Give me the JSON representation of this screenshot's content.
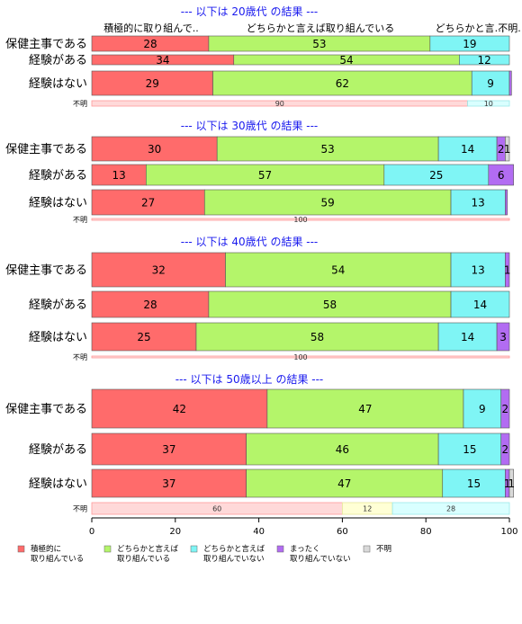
{
  "chart_data": {
    "type": "bar",
    "orientation": "horizontal-stacked-100",
    "xlim": [
      0,
      100
    ],
    "xticks": [
      0,
      20,
      40,
      60,
      80,
      100
    ],
    "column_headers": [
      "積極的に取り組んで..",
      "どちらかと言えば取り組んでいる",
      "どちらかと言…",
      "不明."
    ],
    "legend": [
      {
        "name": "積極的に\n取り組んでいる",
        "color": "#ff6b6b"
      },
      {
        "name": "どちらかと言えば\n取り組んでいる",
        "color": "#b4f56a"
      },
      {
        "name": "どちらかと言えば\n取り組んでいない",
        "color": "#7ff5f5"
      },
      {
        "name": "まったく\n取り組んでいない",
        "color": "#b26cf2"
      },
      {
        "name": "不明",
        "color": "#d9d9d9"
      }
    ],
    "groups": [
      {
        "title": "--- 以下は 20歳代 の結果 ---",
        "rows": [
          {
            "label": "保健主事である",
            "values": [
              28,
              53,
              19,
              0,
              0
            ],
            "labels": [
              "28",
              "53",
              "19",
              "",
              ""
            ]
          },
          {
            "label": "経験がある",
            "values": [
              34,
              54,
              12,
              0,
              0
            ],
            "labels": [
              "34",
              "54",
              "12",
              "",
              ""
            ]
          },
          {
            "label": "経験はない",
            "values": [
              29,
              62,
              9,
              0.5,
              0
            ],
            "labels": [
              "29",
              "62",
              "9",
              "",
              ""
            ]
          }
        ],
        "unknown": {
          "label": "不明",
          "values": [
            90,
            0,
            10
          ],
          "labels": [
            "90",
            "",
            "10"
          ]
        }
      },
      {
        "title": "--- 以下は 30歳代 の結果 ---",
        "rows": [
          {
            "label": "保健主事である",
            "values": [
              30,
              53,
              14,
              2,
              1
            ],
            "labels": [
              "30",
              "53",
              "14",
              "2",
              "1"
            ]
          },
          {
            "label": "経験がある",
            "values": [
              13,
              57,
              25,
              6,
              0
            ],
            "labels": [
              "13",
              "57",
              "25",
              "6",
              ""
            ]
          },
          {
            "label": "経験はない",
            "values": [
              27,
              59,
              13,
              0.5,
              0
            ],
            "labels": [
              "27",
              "59",
              "13",
              "",
              ""
            ]
          }
        ],
        "unknown": {
          "label": "不明",
          "values": [
            100,
            0,
            0
          ],
          "labels": [
            "100",
            "",
            ""
          ]
        }
      },
      {
        "title": "--- 以下は 40歳代 の結果 ---",
        "rows": [
          {
            "label": "保健主事である",
            "values": [
              32,
              54,
              13,
              1,
              0
            ],
            "labels": [
              "32",
              "54",
              "13",
              "1",
              ""
            ]
          },
          {
            "label": "経験がある",
            "values": [
              28,
              58,
              14,
              0,
              0
            ],
            "labels": [
              "28",
              "58",
              "14",
              "",
              ""
            ]
          },
          {
            "label": "経験はない",
            "values": [
              25,
              58,
              14,
              3,
              0
            ],
            "labels": [
              "25",
              "58",
              "14",
              "3",
              ""
            ]
          }
        ],
        "unknown": {
          "label": "不明",
          "values": [
            100,
            0,
            0
          ],
          "labels": [
            "100",
            "",
            ""
          ]
        }
      },
      {
        "title": "--- 以下は 50歳以上 の結果 ---",
        "rows": [
          {
            "label": "保健主事である",
            "values": [
              42,
              47,
              9,
              2,
              0
            ],
            "labels": [
              "42",
              "47",
              "9",
              "2",
              ""
            ]
          },
          {
            "label": "経験がある",
            "values": [
              37,
              46,
              15,
              2,
              0
            ],
            "labels": [
              "37",
              "46",
              "15",
              "2",
              ""
            ]
          },
          {
            "label": "経験はない",
            "values": [
              37,
              47,
              15,
              1,
              1
            ],
            "labels": [
              "37",
              "47",
              "15",
              "1",
              "1"
            ]
          }
        ],
        "unknown": {
          "label": "不明",
          "values": [
            60,
            12,
            28
          ],
          "labels": [
            "60",
            "12",
            "28"
          ]
        }
      }
    ]
  }
}
